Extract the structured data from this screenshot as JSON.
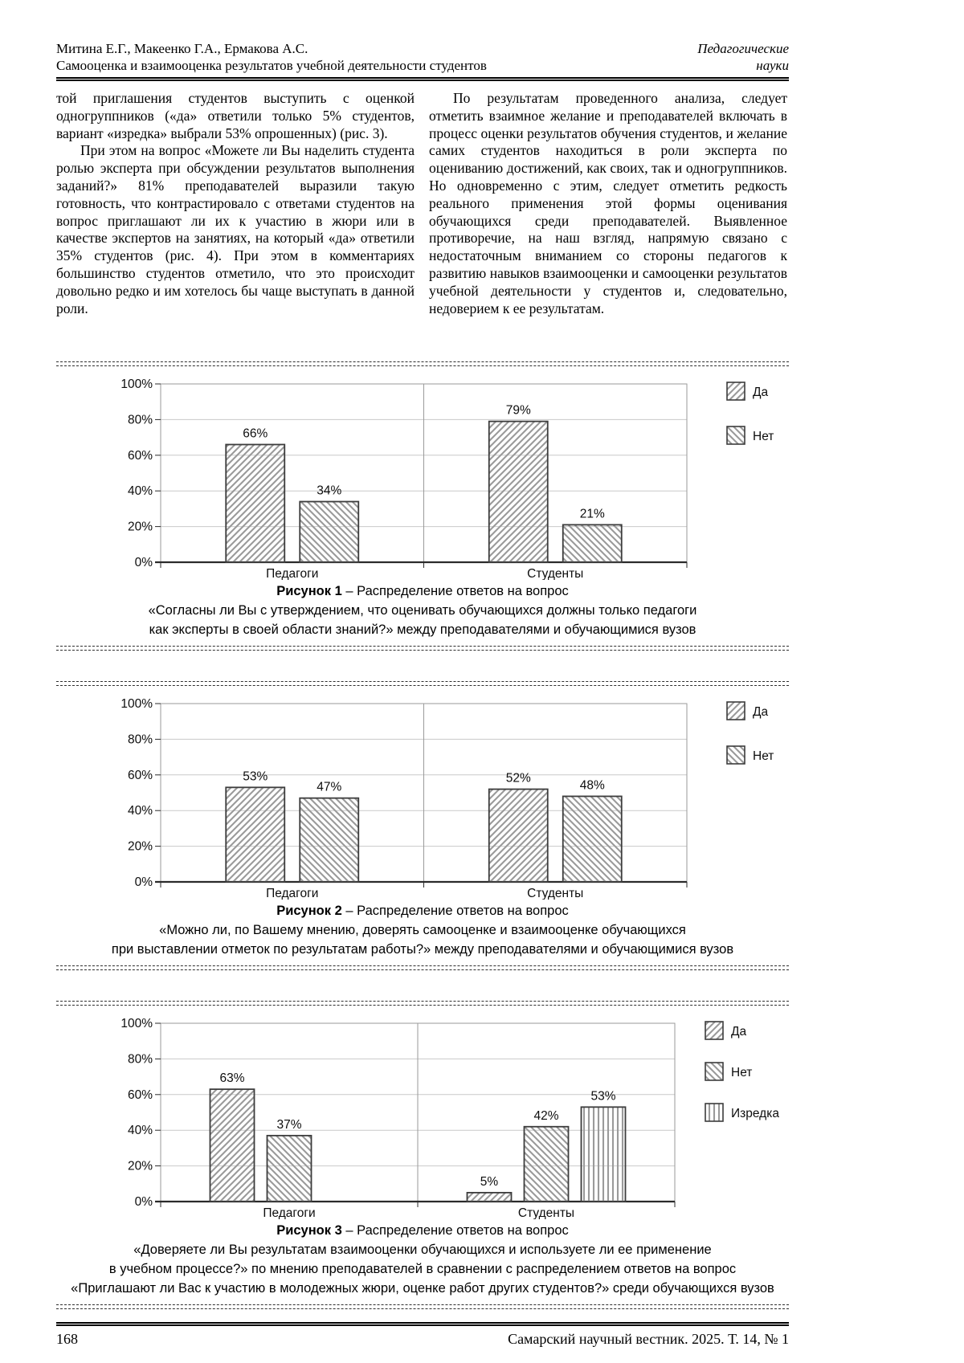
{
  "header": {
    "authors": "Митина Е.Г., Макеенко Г.А., Ермакова А.С.",
    "running_title": "Самооценка и взаимооценка результатов учебной деятельности студентов",
    "section_line1": "Педагогические",
    "section_line2": "науки"
  },
  "body": {
    "left_column": [
      {
        "text": "той приглашения студентов выступить с оценкой одногруппников («да» ответили только 5% студентов, вариант «изредка» выбрали 53% опрошенных) (рис. 3)."
      },
      {
        "text": "При этом на вопрос «Можете ли Вы наделить студента ролью эксперта при обсуждении результатов выполнения заданий?» 81% преподавателей выразили такую готовность, что контрастировало с ответами студентов на вопрос приглашают ли их к участию в жюри или в качестве экспертов на занятиях, на который «да» ответили 35% студентов (рис. 4). При этом в комментариях большинство студентов отметило, что это происходит довольно редко и им хотелось бы чаще выступать в данной роли."
      }
    ],
    "right_column": [
      {
        "text": "По результатам проведенного анализа, следует отметить взаимное желание и преподавателей включать в процесс оценки результатов обучения студентов, и желание самих студентов находиться в роли эксперта по оцениванию достижений, как своих, так и одногруппников. Но одновременно с этим, следует отметить редкость реального применения этой формы оценивания обучающихся среди преподавателей. Выявленное противоречие, на наш взгляд, напрямую связано с недостаточным вниманием со стороны педагогов к развитию навыков взаимооценки и самооценки результатов учебной деятельности у студентов и, следовательно, недоверием к ее результатам."
      }
    ]
  },
  "figures": [
    {
      "caption_label": "Рисунок 1",
      "caption_title": "– Распределение ответов на вопрос",
      "caption_lines": [
        "«Согласны ли Вы с утверждением, что оценивать обучающихся должны только педагоги",
        "как эксперты в своей области знаний?» между преподавателями и обучающимися вузов"
      ]
    },
    {
      "caption_label": "Рисунок 2",
      "caption_title": "– Распределение ответов на вопрос",
      "caption_lines": [
        "«Можно ли, по Вашему мнению, доверять самооценке и взаимооценке обучающихся",
        "при выставлении отметок по результатам работы?» между преподавателями и обучающимися вузов"
      ]
    },
    {
      "caption_label": "Рисунок 3",
      "caption_title": "– Распределение ответов на вопрос",
      "caption_lines": [
        "«Доверяете ли Вы результатам взаимооценки обучающихся и используете ли ее применение",
        "в учебном процессе?» по мнению преподавателей в сравнении с распределением ответов на вопрос",
        "«Приглашают ли Вас к участию в молодежных жюри, оценке работ других студентов?» среди обучающихся вузов"
      ]
    }
  ],
  "chart_data": [
    {
      "type": "bar",
      "categories": [
        "Педагоги",
        "Студенты"
      ],
      "series": [
        {
          "name": "Да",
          "hatch": "diag-up",
          "values": [
            66,
            79
          ],
          "labels": [
            "66%",
            "79%"
          ]
        },
        {
          "name": "Нет",
          "hatch": "diag-down",
          "values": [
            34,
            21
          ],
          "labels": [
            "34%",
            "21%"
          ]
        }
      ],
      "ylim": [
        0,
        100
      ],
      "ytick_values": [
        0,
        20,
        40,
        60,
        80,
        100
      ],
      "ytick_labels": [
        "0%",
        "20%",
        "40%",
        "60%",
        "80%",
        "100%"
      ],
      "grid": true,
      "legend_position": "right"
    },
    {
      "type": "bar",
      "categories": [
        "Педагоги",
        "Студенты"
      ],
      "series": [
        {
          "name": "Да",
          "hatch": "diag-up",
          "values": [
            53,
            52
          ],
          "labels": [
            "53%",
            "52%"
          ]
        },
        {
          "name": "Нет",
          "hatch": "diag-down",
          "values": [
            47,
            48
          ],
          "labels": [
            "47%",
            "48%"
          ]
        }
      ],
      "ylim": [
        0,
        100
      ],
      "ytick_values": [
        0,
        20,
        40,
        60,
        80,
        100
      ],
      "ytick_labels": [
        "0%",
        "20%",
        "40%",
        "60%",
        "80%",
        "100%"
      ],
      "grid": true,
      "legend_position": "right"
    },
    {
      "type": "bar",
      "categories": [
        "Педагоги",
        "Студенты"
      ],
      "series": [
        {
          "name": "Да",
          "hatch": "diag-up",
          "values": [
            63,
            5
          ],
          "labels": [
            "63%",
            "5%"
          ]
        },
        {
          "name": "Нет",
          "hatch": "diag-down",
          "values": [
            37,
            42
          ],
          "labels": [
            "37%",
            "42%"
          ]
        },
        {
          "name": "Изредка",
          "hatch": "vertical",
          "values": [
            null,
            53
          ],
          "labels": [
            null,
            "53%"
          ]
        }
      ],
      "ylim": [
        0,
        100
      ],
      "ytick_values": [
        0,
        20,
        40,
        60,
        80,
        100
      ],
      "ytick_labels": [
        "0%",
        "20%",
        "40%",
        "60%",
        "80%",
        "100%"
      ],
      "grid": true,
      "legend_position": "right"
    }
  ],
  "footer": {
    "page_number": "168",
    "journal": "Самарский научный вестник. 2025. Т. 14, № 1"
  },
  "colors": {
    "text": "#0d0d0d",
    "hatch": "#9a9a9a",
    "bar_border": "#3c3c3c",
    "grid": "#c9c9c9",
    "plot_border": "#9a9a9a",
    "axis": "#2b2b2b"
  }
}
